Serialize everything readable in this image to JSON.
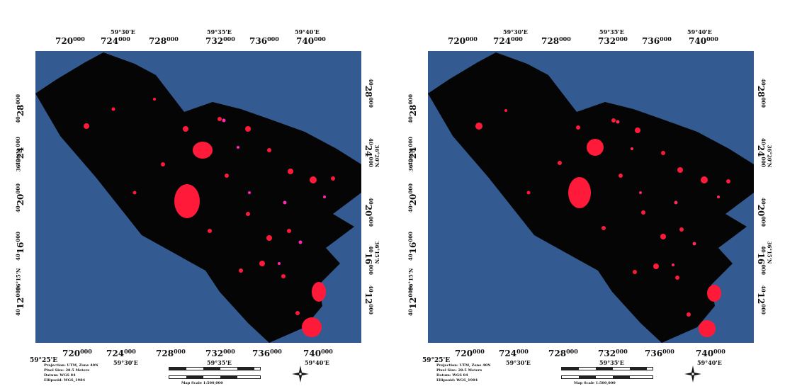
{
  "maps": [
    {
      "id": "left",
      "colors": {
        "ocean": "#345b91",
        "land": "#050505",
        "highlight": "#ff1a3a",
        "highlight_alt": "#ff2ab0"
      },
      "top_ticks": [
        "720",
        "724",
        "728",
        "732",
        "736",
        "740"
      ],
      "bottom_ticks": [
        "720",
        "724",
        "728",
        "732",
        "736",
        "740"
      ],
      "tick_suffix": "000",
      "geo_top": [
        "59°30'E",
        "59°35'E",
        "59°40'E"
      ],
      "geo_bottom": [
        "59°25'E",
        "59°30'E",
        "59°35'E",
        "59°40'E"
      ],
      "left_ticks": [
        "28",
        "24",
        "20",
        "16",
        "12"
      ],
      "right_ticks": [
        "28",
        "24",
        "20",
        "16",
        "12"
      ],
      "vtick_prefix": "40",
      "vtick_suffix": "000",
      "geo_left": [
        "36°20'N",
        "36°15'N"
      ],
      "geo_right": [
        "36°20'N",
        "36°15'N"
      ],
      "info": [
        "Projection: UTM, Zone 40N",
        "Pixel Size: 28.5 Meters",
        "Datum: WGS 84",
        "Ellipsoid: WGS_1984"
      ],
      "scale_text": "Map Scale 1:500,000",
      "scale_units": "Kilometers"
    },
    {
      "id": "right",
      "colors": {
        "ocean": "#345b91",
        "land": "#050505",
        "highlight": "#ff1a3a",
        "highlight_alt": "#ff2a5a"
      },
      "top_ticks": [
        "720",
        "724",
        "728",
        "732",
        "736",
        "740"
      ],
      "bottom_ticks": [
        "720",
        "724",
        "728",
        "732",
        "736",
        "740"
      ],
      "tick_suffix": "000",
      "geo_top": [
        "59°30'E",
        "59°35'E",
        "59°40'E"
      ],
      "geo_bottom": [
        "59°25'E",
        "59°30'E",
        "59°35'E",
        "59°40'E"
      ],
      "left_ticks": [
        "28",
        "24",
        "20",
        "16",
        "12"
      ],
      "right_ticks": [
        "28",
        "24",
        "20",
        "16",
        "12"
      ],
      "vtick_prefix": "40",
      "vtick_suffix": "000",
      "geo_left": [
        "36°20'N",
        "36°15'N"
      ],
      "geo_right": [
        "36°20'N",
        "36°15'N"
      ],
      "info": [
        "Projection: UTM, Zone 40N",
        "Pixel Size: 28.5 Meters",
        "Datum: WGS 84",
        "Ellipsoid: WGS_1984"
      ],
      "scale_text": "Map Scale 1:500,000",
      "scale_units": "Kilometers"
    }
  ]
}
